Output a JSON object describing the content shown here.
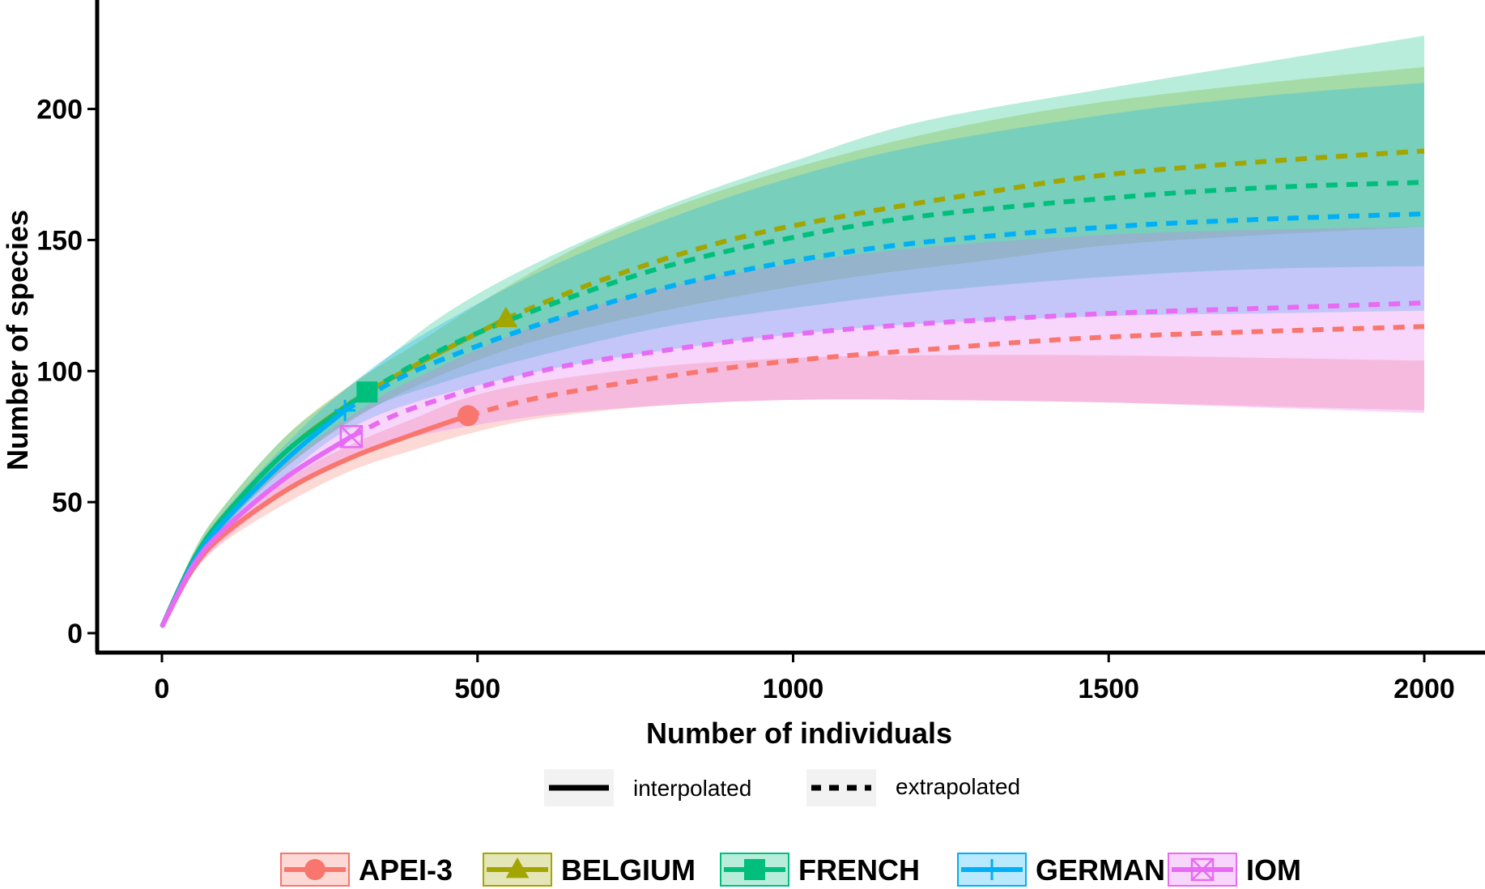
{
  "chart_data": {
    "type": "line",
    "xlabel": "Number of individuals",
    "ylabel": "Number of species",
    "xlim": [
      -20,
      2100
    ],
    "ylim": [
      -8,
      242
    ],
    "x_ticks": [
      0,
      500,
      1000,
      1500,
      2000
    ],
    "y_ticks": [
      0,
      50,
      100,
      150,
      200
    ],
    "grid": false,
    "line_type_legend": {
      "interpolated": "interpolated",
      "extrapolated": "extrapolated"
    },
    "legend_position": "bottom",
    "series": [
      {
        "name": "APEI-3",
        "color": "#F8766D",
        "marker": "circle",
        "observed": {
          "x": 485,
          "y": 83
        },
        "x": [
          1,
          50,
          100,
          200,
          300,
          400,
          485,
          600,
          800,
          1000,
          1200,
          1500,
          2000
        ],
        "y": [
          3,
          25,
          38,
          55,
          67,
          76,
          83,
          90,
          98,
          104,
          108,
          113,
          117
        ],
        "lower": [
          3,
          23,
          35,
          50,
          62,
          70,
          76,
          82,
          87,
          89,
          89,
          88,
          85
        ],
        "upper": [
          3,
          27,
          41,
          59,
          72,
          82,
          90,
          96,
          102,
          105,
          106,
          106,
          104
        ]
      },
      {
        "name": "BELGIUM",
        "color": "#A3A500",
        "marker": "triangle",
        "observed": {
          "x": 545,
          "y": 120
        },
        "x": [
          1,
          50,
          100,
          200,
          300,
          400,
          545,
          700,
          900,
          1100,
          1300,
          1500,
          1750,
          2000
        ],
        "y": [
          3,
          28,
          45,
          70,
          88,
          102,
          120,
          135,
          150,
          160,
          168,
          175,
          180,
          184
        ],
        "lower": [
          3,
          25,
          41,
          64,
          81,
          94,
          108,
          118,
          128,
          136,
          142,
          148,
          152,
          155
        ],
        "upper": [
          3,
          31,
          49,
          76,
          95,
          110,
          132,
          152,
          170,
          184,
          195,
          203,
          210,
          216
        ]
      },
      {
        "name": "FRENCH",
        "color": "#00BF7D",
        "marker": "square",
        "observed": {
          "x": 325,
          "y": 92
        },
        "x": [
          1,
          50,
          100,
          200,
          325,
          450,
          600,
          800,
          1000,
          1200,
          1500,
          1750,
          2000
        ],
        "y": [
          3,
          28,
          45,
          70,
          92,
          109,
          124,
          140,
          151,
          159,
          166,
          170,
          172
        ],
        "lower": [
          3,
          25,
          41,
          64,
          85,
          96,
          106,
          117,
          124,
          130,
          136,
          139,
          140
        ],
        "upper": [
          3,
          31,
          49,
          76,
          99,
          122,
          142,
          163,
          180,
          195,
          208,
          218,
          228
        ]
      },
      {
        "name": "GERMAN",
        "color": "#00B0F6",
        "marker": "plus",
        "observed": {
          "x": 290,
          "y": 85
        },
        "x": [
          1,
          50,
          100,
          200,
          290,
          400,
          600,
          800,
          1000,
          1200,
          1500,
          1750,
          2000
        ],
        "y": [
          3,
          27,
          43,
          67,
          85,
          100,
          118,
          132,
          142,
          149,
          155,
          158,
          160
        ],
        "lower": [
          3,
          24,
          39,
          61,
          77,
          88,
          100,
          108,
          114,
          118,
          121,
          122,
          123
        ],
        "upper": [
          3,
          30,
          47,
          73,
          93,
          112,
          138,
          158,
          174,
          186,
          198,
          205,
          210
        ]
      },
      {
        "name": "IOM",
        "color": "#E76BF3",
        "marker": "square-cross",
        "observed": {
          "x": 300,
          "y": 75
        },
        "x": [
          1,
          50,
          100,
          200,
          300,
          400,
          600,
          800,
          1000,
          1200,
          1500,
          1750,
          2000
        ],
        "y": [
          3,
          26,
          40,
          60,
          75,
          86,
          100,
          108,
          114,
          118,
          122,
          124,
          126
        ],
        "lower": [
          3,
          23,
          36,
          54,
          67,
          75,
          83,
          87,
          89,
          89,
          88,
          86,
          84
        ],
        "upper": [
          3,
          29,
          44,
          66,
          83,
          97,
          118,
          132,
          141,
          147,
          152,
          154,
          155
        ]
      }
    ]
  }
}
